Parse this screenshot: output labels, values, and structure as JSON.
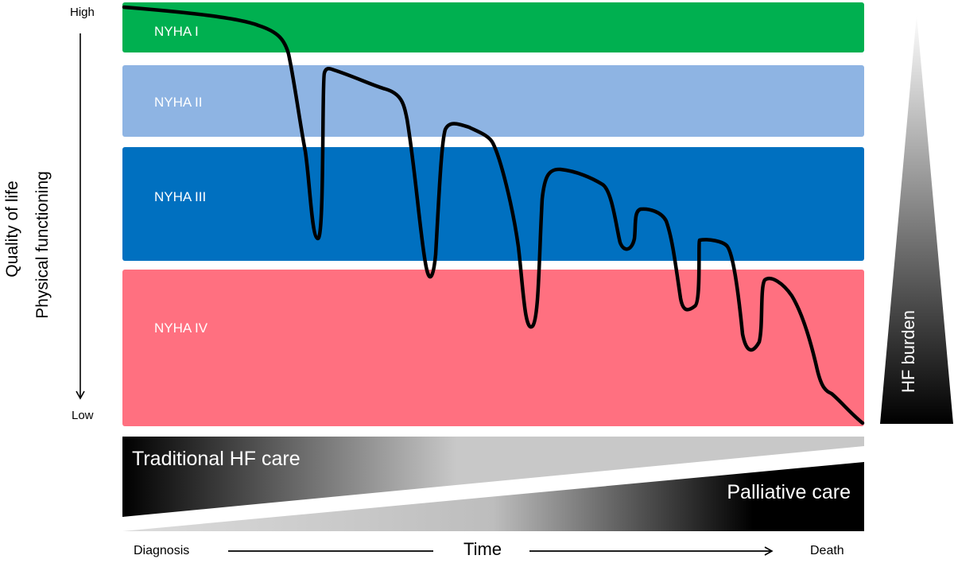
{
  "y_axis": {
    "top_label": "High",
    "bottom_label": "Low",
    "title_line1": "Quality of life",
    "title_line2": "Physical functioning"
  },
  "bands": [
    {
      "label": "NYHA I",
      "color": "#00b050"
    },
    {
      "label": "NYHA II",
      "color": "#8eb4e3"
    },
    {
      "label": "NYHA III",
      "color": "#0070c0"
    },
    {
      "label": "NYHA IV",
      "color": "#ff7080"
    }
  ],
  "curve_color": "#000000",
  "burden": {
    "label": "HF burden"
  },
  "care": {
    "traditional_label": "Traditional HF  care",
    "palliative_label": "Palliative care"
  },
  "x_axis": {
    "start_label": "Diagnosis",
    "center_label": "Time",
    "end_label": "Death"
  }
}
